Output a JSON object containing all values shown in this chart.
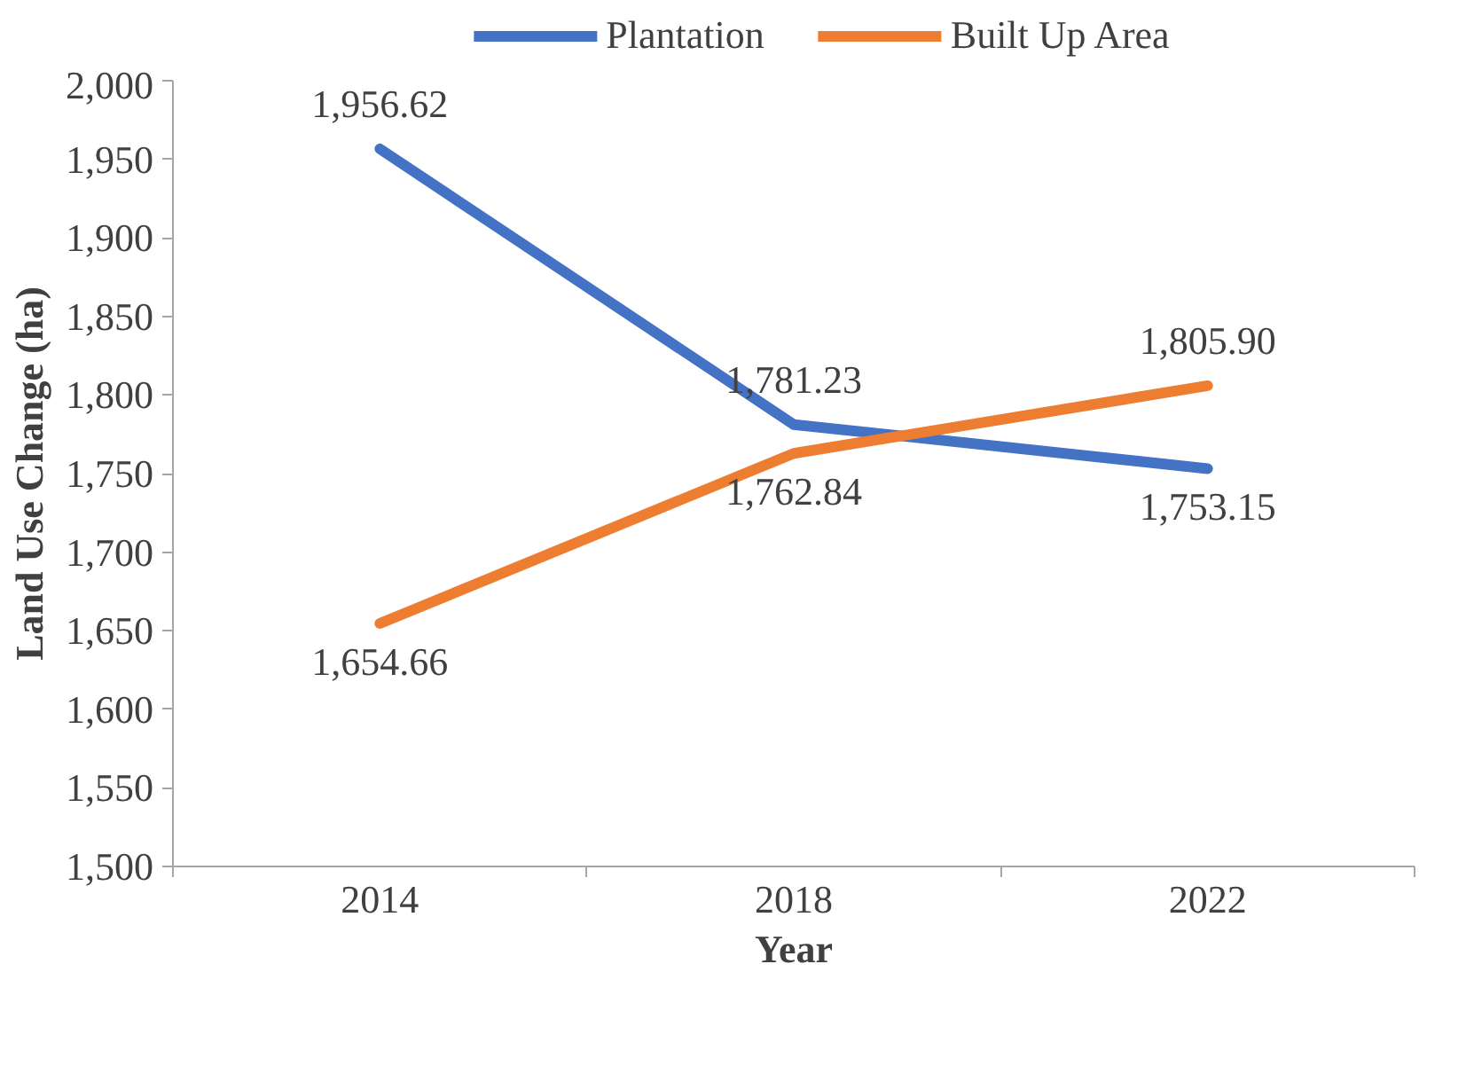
{
  "chart_data": {
    "type": "line",
    "xlabel": "Year",
    "ylabel": "Land Use Change (ha)",
    "categories": [
      "2014",
      "2018",
      "2022"
    ],
    "series": [
      {
        "name": "Plantation",
        "color": "#4472c4",
        "values": [
          1956.62,
          1781.23,
          1753.15
        ],
        "value_labels": [
          "1,956.62",
          "1,781.23",
          "1,753.15"
        ]
      },
      {
        "name": "Built Up Area",
        "color": "#ed7d31",
        "values": [
          1654.66,
          1762.84,
          1805.9
        ],
        "value_labels": [
          "1,654.66",
          "1,762.84",
          "1,805.90"
        ]
      }
    ],
    "ylim": [
      1500,
      2000
    ],
    "yticks": [
      {
        "value": 1500,
        "label": "1,500"
      },
      {
        "value": 1550,
        "label": "1,550"
      },
      {
        "value": 1600,
        "label": "1,600"
      },
      {
        "value": 1650,
        "label": "1,650"
      },
      {
        "value": 1700,
        "label": "1,700"
      },
      {
        "value": 1750,
        "label": "1,750"
      },
      {
        "value": 1800,
        "label": "1,800"
      },
      {
        "value": 1850,
        "label": "1,850"
      },
      {
        "value": 1900,
        "label": "1,900"
      },
      {
        "value": 1950,
        "label": "1,950"
      },
      {
        "value": 2000,
        "label": "2,000"
      }
    ],
    "grid": false,
    "legend": "top",
    "marker": "none",
    "line_style": "solid"
  }
}
